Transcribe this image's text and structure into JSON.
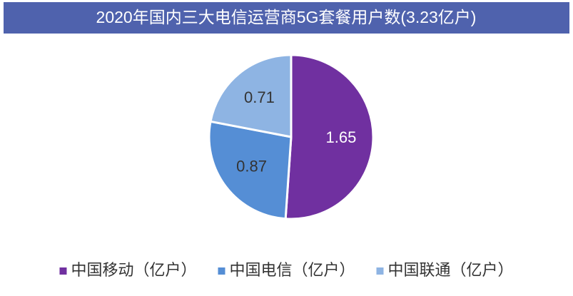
{
  "chart_data": {
    "type": "pie",
    "title": "2020年国内三大电信运营商5G套餐用户数(3.23亿户)",
    "categories": [
      "中国移动（亿户）",
      "中国电信（亿户）",
      "中国联通（亿户）"
    ],
    "values": [
      1.65,
      0.87,
      0.71
    ],
    "colors": [
      "#7030a0",
      "#558ed5",
      "#8eb4e3"
    ],
    "legend": "bottom"
  }
}
